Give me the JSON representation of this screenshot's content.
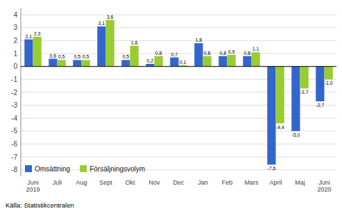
{
  "chart_data": {
    "type": "bar",
    "categories": [
      "Juni\n2019",
      "Juli",
      "Aug",
      "Sept",
      "Okt",
      "Nov",
      "Dec",
      "Jan",
      "Feb",
      "Mars",
      "April",
      "Maj",
      "Juni\n2020"
    ],
    "series": [
      {
        "name": "Omsättning",
        "color": "#3366cc",
        "values": [
          2.1,
          0.6,
          0.5,
          3.1,
          0.5,
          0.2,
          0.7,
          1.8,
          0.8,
          0.8,
          -7.6,
          -5.0,
          -2.7
        ],
        "value_labels": [
          "2,1",
          "0,6",
          "0,5",
          "3,1",
          "0,5",
          "0,2",
          "0,7",
          "1,8",
          "0,8",
          "0,8",
          "-7,6",
          "-5,0",
          "-2,7"
        ]
      },
      {
        "name": "Försäljningsvolym",
        "color": "#99cc33",
        "values": [
          2.3,
          0.5,
          0.5,
          3.6,
          1.6,
          0.8,
          0.1,
          0.8,
          0.9,
          1.1,
          -4.4,
          -1.7,
          -1.0
        ],
        "value_labels": [
          "2,3",
          "0,5",
          "0,5",
          "3,6",
          "1,6",
          "0,8",
          "0,1",
          "0,8",
          "0,9",
          "1,1",
          "-4,4",
          "-1,7",
          "-1,0"
        ]
      }
    ],
    "ylim": [
      -8.5,
      4.5
    ],
    "yticks": [
      -8,
      -7,
      -6,
      -5,
      -4,
      -3,
      -2,
      -1,
      0,
      1,
      2,
      3,
      4
    ],
    "grid": true,
    "legend": "lower left",
    "data_labels": true,
    "annotations": [
      "Källa: Statistikcentralen"
    ]
  }
}
